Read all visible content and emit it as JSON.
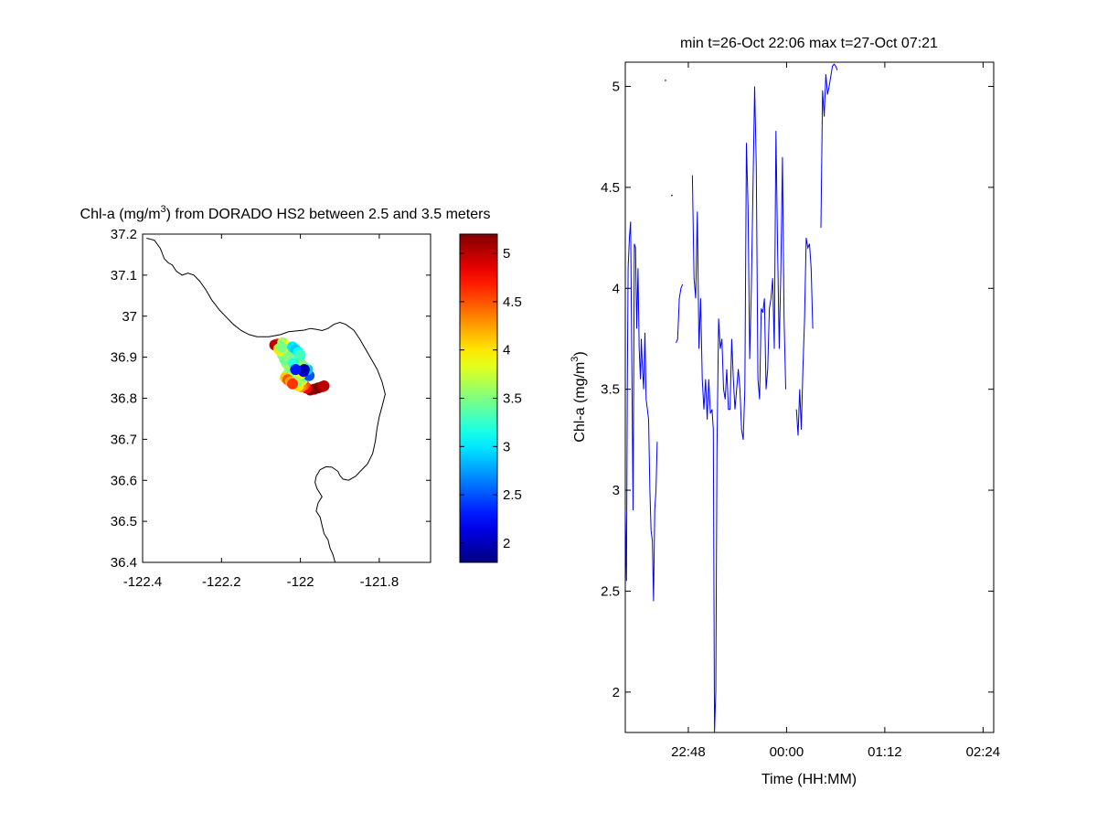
{
  "chart_data": [
    {
      "type": "scatter",
      "title": "Chl-a (mg/m3) from DORADO HS2 between 2.5 and 3.5 meters",
      "title_parts": {
        "pre": "Chl-a (mg/m",
        "sup": "3",
        "post": ") from DORADO HS2 between 2.5 and 3.5 meters"
      },
      "xlabel": "",
      "ylabel": "",
      "xlim": [
        -122.4,
        -121.67
      ],
      "ylim": [
        36.4,
        37.2
      ],
      "xticks": [
        -122.4,
        -122.2,
        -122,
        -121.8
      ],
      "xtick_labels": [
        "-122.4",
        "-122.2",
        "-122",
        "-121.8"
      ],
      "yticks": [
        36.4,
        36.5,
        36.6,
        36.7,
        36.8,
        36.9,
        37,
        37.1,
        37.2
      ],
      "ytick_labels": [
        "36.4",
        "36.5",
        "36.6",
        "36.7",
        "36.8",
        "36.9",
        "37",
        "37.1",
        "37.2"
      ],
      "grid": false,
      "colormap": "jet",
      "colorbar": {
        "clim": [
          1.8,
          5.2
        ],
        "ticks": [
          2,
          2.5,
          3,
          3.5,
          4,
          4.5,
          5
        ],
        "tick_labels": [
          "2",
          "2.5",
          "3",
          "3.5",
          "4",
          "4.5",
          "5"
        ]
      },
      "coastline": [
        [
          -122.39,
          37.19
        ],
        [
          -122.37,
          37.185
        ],
        [
          -122.355,
          37.165
        ],
        [
          -122.345,
          37.14
        ],
        [
          -122.335,
          37.13
        ],
        [
          -122.325,
          37.125
        ],
        [
          -122.315,
          37.11
        ],
        [
          -122.3,
          37.1
        ],
        [
          -122.285,
          37.105
        ],
        [
          -122.27,
          37.1
        ],
        [
          -122.255,
          37.085
        ],
        [
          -122.24,
          37.065
        ],
        [
          -122.225,
          37.04
        ],
        [
          -122.205,
          37.015
        ],
        [
          -122.19,
          37.0
        ],
        [
          -122.17,
          36.98
        ],
        [
          -122.15,
          36.965
        ],
        [
          -122.13,
          36.955
        ],
        [
          -122.11,
          36.95
        ],
        [
          -122.08,
          36.95
        ],
        [
          -122.05,
          36.955
        ],
        [
          -122.03,
          36.962
        ],
        [
          -122.01,
          36.964
        ],
        [
          -121.99,
          36.966
        ],
        [
          -121.975,
          36.97
        ],
        [
          -121.96,
          36.968
        ],
        [
          -121.945,
          36.965
        ],
        [
          -121.93,
          36.97
        ],
        [
          -121.915,
          36.98
        ],
        [
          -121.9,
          36.985
        ],
        [
          -121.885,
          36.98
        ],
        [
          -121.865,
          36.966
        ],
        [
          -121.85,
          36.945
        ],
        [
          -121.835,
          36.92
        ],
        [
          -121.82,
          36.895
        ],
        [
          -121.805,
          36.87
        ],
        [
          -121.793,
          36.84
        ],
        [
          -121.785,
          36.81
        ],
        [
          -121.793,
          36.78
        ],
        [
          -121.8,
          36.755
        ],
        [
          -121.806,
          36.725
        ],
        [
          -121.81,
          36.695
        ],
        [
          -121.817,
          36.665
        ],
        [
          -121.83,
          36.64
        ],
        [
          -121.845,
          36.625
        ],
        [
          -121.86,
          36.61
        ],
        [
          -121.878,
          36.6
        ],
        [
          -121.892,
          36.603
        ],
        [
          -121.9,
          36.612
        ],
        [
          -121.905,
          36.622
        ],
        [
          -121.92,
          36.632
        ],
        [
          -121.935,
          36.633
        ],
        [
          -121.95,
          36.626
        ],
        [
          -121.96,
          36.61
        ],
        [
          -121.963,
          36.595
        ],
        [
          -121.958,
          36.58
        ],
        [
          -121.945,
          36.56
        ],
        [
          -121.955,
          36.545
        ],
        [
          -121.96,
          36.525
        ],
        [
          -121.95,
          36.51
        ],
        [
          -121.945,
          36.49
        ],
        [
          -121.94,
          36.47
        ],
        [
          -121.93,
          36.455
        ],
        [
          -121.925,
          36.435
        ],
        [
          -121.918,
          36.42
        ],
        [
          -121.912,
          36.4
        ]
      ],
      "points": [
        [
          -121.975,
          36.82,
          5.1
        ],
        [
          -121.965,
          36.822,
          5.15
        ],
        [
          -121.955,
          36.825,
          5.2
        ],
        [
          -121.945,
          36.828,
          5.1
        ],
        [
          -121.94,
          36.83,
          5.0
        ],
        [
          -121.985,
          36.825,
          4.8
        ],
        [
          -121.99,
          36.832,
          4.5
        ],
        [
          -121.998,
          36.828,
          4.3
        ],
        [
          -122.005,
          36.83,
          4.0
        ],
        [
          -121.995,
          36.845,
          3.8
        ],
        [
          -122.01,
          36.84,
          3.5
        ],
        [
          -122.0,
          36.85,
          3.6
        ],
        [
          -121.99,
          36.855,
          3.4
        ],
        [
          -121.985,
          36.862,
          2.7
        ],
        [
          -121.978,
          36.855,
          2.5
        ],
        [
          -121.982,
          36.87,
          2.9
        ],
        [
          -121.99,
          36.875,
          3.2
        ],
        [
          -121.995,
          36.88,
          3.5
        ],
        [
          -122.0,
          36.885,
          3.6
        ],
        [
          -122.005,
          36.89,
          3.4
        ],
        [
          -122.01,
          36.895,
          3.3
        ],
        [
          -122.015,
          36.9,
          3.5
        ],
        [
          -122.02,
          36.905,
          3.4
        ],
        [
          -122.025,
          36.91,
          3.6
        ],
        [
          -122.03,
          36.915,
          3.7
        ],
        [
          -122.035,
          36.92,
          3.5
        ],
        [
          -122.04,
          36.925,
          3.8
        ],
        [
          -122.05,
          36.93,
          4.3
        ],
        [
          -122.058,
          36.932,
          4.7
        ],
        [
          -122.065,
          36.93,
          5.0
        ],
        [
          -122.045,
          36.935,
          3.6
        ],
        [
          -122.035,
          36.928,
          3.9
        ],
        [
          -122.02,
          36.925,
          3.0
        ],
        [
          -122.012,
          36.918,
          2.9
        ],
        [
          -122.005,
          36.912,
          3.1
        ],
        [
          -122.0,
          36.905,
          3.3
        ],
        [
          -122.008,
          36.88,
          3.6
        ],
        [
          -122.015,
          36.875,
          3.8
        ],
        [
          -122.02,
          36.87,
          3.5
        ],
        [
          -122.025,
          36.865,
          3.6
        ],
        [
          -122.03,
          36.86,
          3.4
        ],
        [
          -122.035,
          36.855,
          3.7
        ],
        [
          -122.038,
          36.85,
          4.1
        ],
        [
          -122.032,
          36.845,
          4.5
        ],
        [
          -122.025,
          36.84,
          4.2
        ],
        [
          -122.02,
          36.835,
          4.6
        ],
        [
          -122.028,
          36.875,
          3.5
        ],
        [
          -122.035,
          36.885,
          3.6
        ],
        [
          -122.04,
          36.895,
          3.4
        ],
        [
          -122.045,
          36.905,
          3.5
        ],
        [
          -122.05,
          36.915,
          3.7
        ],
        [
          -122.055,
          36.92,
          4.0
        ],
        [
          -122.048,
          36.925,
          3.5
        ],
        [
          -122.03,
          36.9,
          3.5
        ],
        [
          -122.018,
          36.885,
          3.2
        ],
        [
          -122.005,
          36.865,
          3.7
        ],
        [
          -121.998,
          36.86,
          3.9
        ],
        [
          -121.992,
          36.865,
          2.2
        ],
        [
          -121.99,
          36.87,
          1.95
        ],
        [
          -122.012,
          36.87,
          2.3
        ]
      ]
    },
    {
      "type": "line",
      "title": "min t=26-Oct 22:06 max t=27-Oct 07:21",
      "xlabel": "Time (HH:MM)",
      "ylabel": "Chl-a (mg/m3)",
      "ylabel_parts": {
        "pre": "Chl-a (mg/m",
        "sup": "3",
        "post": ")"
      },
      "x_unit": "hours after midnight (26-Oct 22:00 to 27-Oct 02:30)",
      "xlim": [
        -1.97,
        2.53
      ],
      "ylim": [
        1.8,
        5.12
      ],
      "xticks": [
        -1.2,
        0,
        1.2,
        2.4
      ],
      "xtick_labels": [
        "22:48",
        "00:00",
        "01:12",
        "02:24"
      ],
      "yticks": [
        2,
        2.5,
        3,
        3.5,
        4,
        4.5,
        5
      ],
      "ytick_labels": [
        "2",
        "2.5",
        "3",
        "3.5",
        "4",
        "4.5",
        "5"
      ],
      "grid": false,
      "series": [
        {
          "color": "#0000ff",
          "segments": [
            [
              [
                -1.97,
                2.9
              ],
              [
                -1.955,
                2.55
              ],
              [
                -1.945,
                3.5
              ],
              [
                -1.935,
                4.1
              ],
              [
                -1.92,
                4.25
              ],
              [
                -1.905,
                4.33
              ],
              [
                -1.89,
                3.6
              ],
              [
                -1.875,
                2.9
              ],
              [
                -1.86,
                4.22
              ],
              [
                -1.845,
                4.2
              ],
              [
                -1.83,
                3.8
              ],
              [
                -1.815,
                4.1
              ],
              [
                -1.8,
                3.7
              ],
              [
                -1.785,
                3.55
              ],
              [
                -1.775,
                3.75
              ],
              [
                -1.76,
                3.6
              ],
              [
                -1.745,
                3.5
              ],
              [
                -1.73,
                3.78
              ],
              [
                -1.715,
                3.45
              ],
              [
                -1.7,
                3.4
              ],
              [
                -1.685,
                3.35
              ],
              [
                -1.67,
                3.0
              ],
              [
                -1.655,
                2.8
              ],
              [
                -1.64,
                2.75
              ],
              [
                -1.625,
                2.45
              ],
              [
                -1.61,
                2.9
              ],
              [
                -1.595,
                3.0
              ],
              [
                -1.58,
                3.24
              ]
            ],
            [
              [
                -1.35,
                3.73
              ],
              [
                -1.33,
                3.75
              ],
              [
                -1.31,
                3.95
              ],
              [
                -1.29,
                4.0
              ],
              [
                -1.27,
                4.02
              ]
            ],
            [
              [
                -1.15,
                4.56
              ],
              [
                -1.13,
                4.05
              ],
              [
                -1.11,
                3.95
              ],
              [
                -1.09,
                4.38
              ],
              [
                -1.07,
                3.7
              ],
              [
                -1.05,
                3.95
              ],
              [
                -1.03,
                3.55
              ],
              [
                -1.01,
                3.4
              ],
              [
                -0.99,
                3.55
              ],
              [
                -0.97,
                3.35
              ],
              [
                -0.95,
                3.55
              ],
              [
                -0.93,
                3.38
              ],
              [
                -0.91,
                3.4
              ],
              [
                -0.895,
                3.3
              ],
              [
                -0.88,
                1.8
              ],
              [
                -0.865,
                2.0
              ],
              [
                -0.85,
                3.2
              ],
              [
                -0.83,
                3.85
              ],
              [
                -0.81,
                3.7
              ],
              [
                -0.79,
                3.75
              ],
              [
                -0.77,
                3.5
              ],
              [
                -0.75,
                3.45
              ],
              [
                -0.73,
                3.6
              ],
              [
                -0.71,
                3.4
              ],
              [
                -0.69,
                3.4
              ],
              [
                -0.67,
                3.75
              ],
              [
                -0.65,
                3.55
              ],
              [
                -0.63,
                3.4
              ],
              [
                -0.61,
                3.5
              ],
              [
                -0.59,
                3.6
              ],
              [
                -0.57,
                3.5
              ],
              [
                -0.55,
                3.3
              ],
              [
                -0.53,
                3.25
              ],
              [
                -0.51,
                3.5
              ],
              [
                -0.49,
                4.72
              ],
              [
                -0.47,
                4.4
              ],
              [
                -0.45,
                3.65
              ],
              [
                -0.43,
                4.0
              ],
              [
                -0.41,
                4.5
              ],
              [
                -0.39,
                5.0
              ],
              [
                -0.37,
                4.6
              ],
              [
                -0.35,
                3.55
              ],
              [
                -0.33,
                3.45
              ],
              [
                -0.31,
                3.9
              ],
              [
                -0.29,
                3.88
              ],
              [
                -0.27,
                3.95
              ],
              [
                -0.25,
                3.5
              ],
              [
                -0.23,
                3.6
              ],
              [
                -0.21,
                3.9
              ],
              [
                -0.19,
                3.95
              ],
              [
                -0.17,
                4.05
              ],
              [
                -0.15,
                3.7
              ],
              [
                -0.13,
                4.78
              ],
              [
                -0.11,
                4.2
              ],
              [
                -0.09,
                3.7
              ],
              [
                -0.07,
                4.1
              ],
              [
                -0.05,
                4.65
              ],
              [
                -0.03,
                3.85
              ],
              [
                -0.01,
                3.5
              ]
            ],
            [
              [
                0.12,
                3.4
              ],
              [
                0.14,
                3.27
              ],
              [
                0.16,
                3.5
              ],
              [
                0.18,
                3.3
              ],
              [
                0.2,
                3.6
              ],
              [
                0.22,
                3.85
              ],
              [
                0.24,
                4.25
              ],
              [
                0.26,
                4.2
              ],
              [
                0.28,
                4.22
              ],
              [
                0.3,
                4.1
              ],
              [
                0.32,
                3.8
              ]
            ],
            [
              [
                0.42,
                4.3
              ],
              [
                0.44,
                4.98
              ],
              [
                0.46,
                4.85
              ],
              [
                0.48,
                5.06
              ],
              [
                0.5,
                4.96
              ],
              [
                0.52,
                5.0
              ],
              [
                0.54,
                5.05
              ],
              [
                0.56,
                5.1
              ],
              [
                0.58,
                5.11
              ],
              [
                0.6,
                5.1
              ],
              [
                0.62,
                5.08
              ]
            ]
          ]
        }
      ],
      "stray_points": [
        [
          -1.48,
          5.03
        ],
        [
          -1.4,
          4.46
        ]
      ]
    }
  ]
}
